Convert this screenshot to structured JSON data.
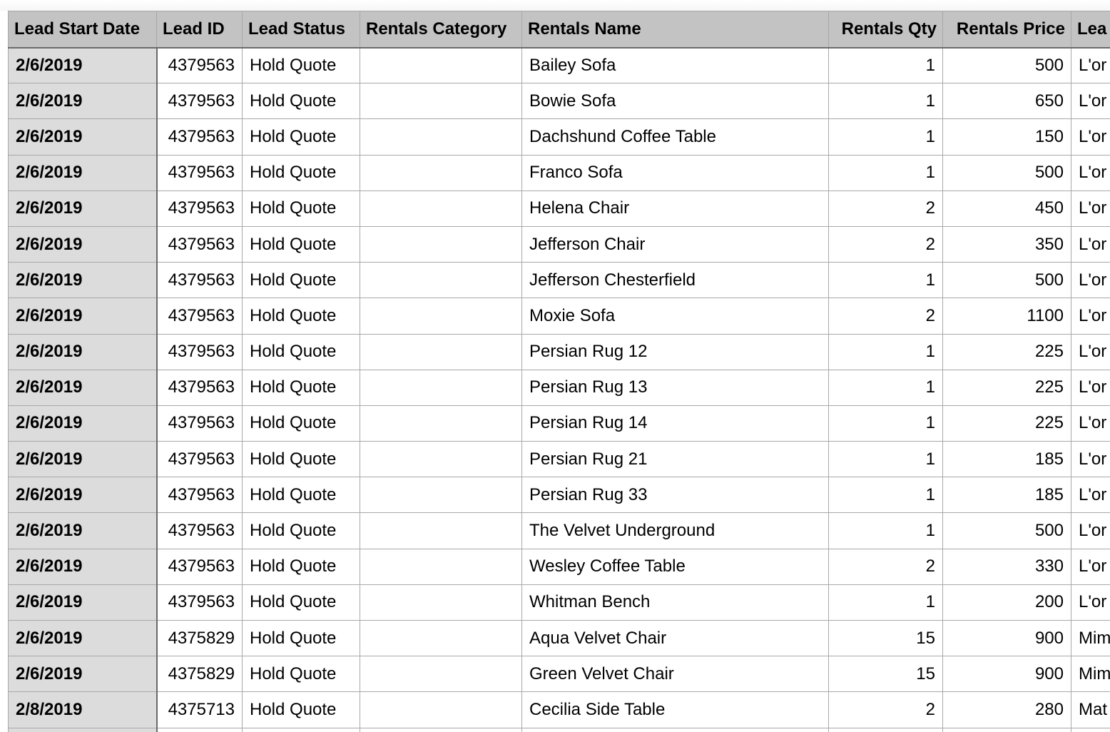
{
  "columns": [
    "Lead Start Date",
    "Lead ID",
    "Lead Status",
    "Rentals Category",
    "Rentals Name",
    "Rentals Qty",
    "Rentals Price",
    "Lea"
  ],
  "rows": [
    [
      "2/6/2019",
      "4379563",
      "Hold Quote",
      "",
      "Bailey Sofa",
      "1",
      "500",
      "L'or"
    ],
    [
      "2/6/2019",
      "4379563",
      "Hold Quote",
      "",
      "Bowie Sofa",
      "1",
      "650",
      "L'or"
    ],
    [
      "2/6/2019",
      "4379563",
      "Hold Quote",
      "",
      "Dachshund Coffee Table",
      "1",
      "150",
      "L'or"
    ],
    [
      "2/6/2019",
      "4379563",
      "Hold Quote",
      "",
      "Franco Sofa",
      "1",
      "500",
      "L'or"
    ],
    [
      "2/6/2019",
      "4379563",
      "Hold Quote",
      "",
      "Helena Chair",
      "2",
      "450",
      "L'or"
    ],
    [
      "2/6/2019",
      "4379563",
      "Hold Quote",
      "",
      "Jefferson Chair",
      "2",
      "350",
      "L'or"
    ],
    [
      "2/6/2019",
      "4379563",
      "Hold Quote",
      "",
      "Jefferson Chesterfield",
      "1",
      "500",
      "L'or"
    ],
    [
      "2/6/2019",
      "4379563",
      "Hold Quote",
      "",
      "Moxie Sofa",
      "2",
      "1100",
      "L'or"
    ],
    [
      "2/6/2019",
      "4379563",
      "Hold Quote",
      "",
      "Persian Rug 12",
      "1",
      "225",
      "L'or"
    ],
    [
      "2/6/2019",
      "4379563",
      "Hold Quote",
      "",
      "Persian Rug 13",
      "1",
      "225",
      "L'or"
    ],
    [
      "2/6/2019",
      "4379563",
      "Hold Quote",
      "",
      "Persian Rug 14",
      "1",
      "225",
      "L'or"
    ],
    [
      "2/6/2019",
      "4379563",
      "Hold Quote",
      "",
      "Persian Rug 21",
      "1",
      "185",
      "L'or"
    ],
    [
      "2/6/2019",
      "4379563",
      "Hold Quote",
      "",
      "Persian Rug 33",
      "1",
      "185",
      "L'or"
    ],
    [
      "2/6/2019",
      "4379563",
      "Hold Quote",
      "",
      "The Velvet Underground",
      "1",
      "500",
      "L'or"
    ],
    [
      "2/6/2019",
      "4379563",
      "Hold Quote",
      "",
      "Wesley Coffee Table",
      "2",
      "330",
      "L'or"
    ],
    [
      "2/6/2019",
      "4379563",
      "Hold Quote",
      "",
      "Whitman Bench",
      "1",
      "200",
      "L'or"
    ],
    [
      "2/6/2019",
      "4375829",
      "Hold Quote",
      "",
      "Aqua Velvet Chair",
      "15",
      "900",
      "Mim"
    ],
    [
      "2/6/2019",
      "4375829",
      "Hold Quote",
      "",
      "Green Velvet Chair",
      "15",
      "900",
      "Mim"
    ],
    [
      "2/8/2019",
      "4375713",
      "Hold Quote",
      "",
      "Cecilia Side Table",
      "2",
      "280",
      "Mat"
    ],
    [
      "",
      "",
      "",
      "",
      "",
      "",
      "",
      ""
    ]
  ],
  "colors": {
    "header_bg": "#c2c3c2",
    "date_col_bg": "#dcdcdc",
    "grid": "#a8a8a8"
  }
}
